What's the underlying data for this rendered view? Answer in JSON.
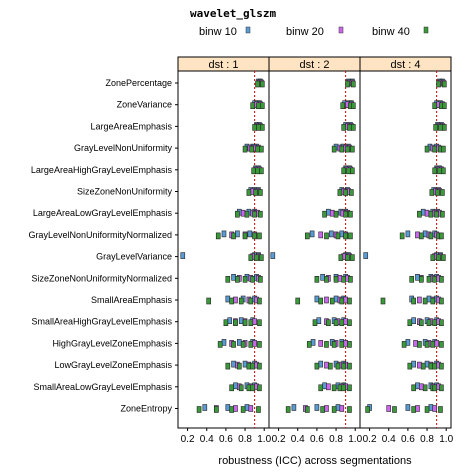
{
  "chart_data": {
    "type": "scatter",
    "title": "wavelet_glszm",
    "xlabel": "robustness (ICC) across segmentations",
    "xlim": [
      0.1,
      1.05
    ],
    "xticks": [
      "0.2",
      "0.4",
      "0.6",
      "0.8",
      "1.0"
    ],
    "reference_x": 0.9,
    "legend_position": "top",
    "panels": [
      "dst : 1",
      "dst : 2",
      "dst : 4"
    ],
    "categories": [
      "ZonePercentage",
      "ZoneVariance",
      "LargeAreaEmphasis",
      "GrayLevelNonUniformity",
      "LargeAreaHighGrayLevelEmphasis",
      "SizeZoneNonUniformity",
      "LargeAreaLowGrayLevelEmphasis",
      "GrayLevelNonUniformityNormalized",
      "GrayLevelVariance",
      "SizeZoneNonUniformityNormalized",
      "SmallAreaEmphasis",
      "SmallAreaHighGrayLevelEmphasis",
      "HighGrayLevelZoneEmphasis",
      "LowGrayLevelZoneEmphasis",
      "SmallAreaLowGrayLevelEmphasis",
      "ZoneEntropy"
    ],
    "series": [
      {
        "name": "binw 10",
        "color": "#5b9bd5",
        "values": [
          [
            [
              0.94,
              0.96
            ],
            [
              0.93,
              0.97
            ],
            [
              0.93,
              0.96
            ]
          ],
          [
            [
              0.9,
              0.93,
              0.95
            ],
            [
              0.89,
              0.94,
              0.96
            ],
            [
              0.9,
              0.94
            ]
          ],
          [
            [
              0.92,
              0.95
            ],
            [
              0.9,
              0.95
            ],
            [
              0.91,
              0.95
            ]
          ],
          [
            [
              0.82,
              0.88,
              0.92
            ],
            [
              0.8,
              0.87,
              0.93
            ],
            [
              0.83,
              0.9
            ]
          ],
          [
            [
              0.91,
              0.94
            ],
            [
              0.9,
              0.94
            ],
            [
              0.9,
              0.93
            ]
          ],
          [
            [
              0.86,
              0.9,
              0.94
            ],
            [
              0.86,
              0.92
            ],
            [
              0.87,
              0.92
            ]
          ],
          [
            [
              0.74,
              0.84,
              0.9
            ],
            [
              0.72,
              0.85,
              0.9
            ],
            [
              0.76,
              0.86,
              0.91
            ]
          ],
          [
            [
              0.58,
              0.72,
              0.85
            ],
            [
              0.55,
              0.75,
              0.86
            ],
            [
              0.6,
              0.78,
              0.88
            ]
          ],
          [
            [
              0.15,
              0.9,
              0.94
            ],
            [
              0.14,
              0.9,
              0.93
            ],
            [
              0.16,
              0.9,
              0.94
            ]
          ],
          [
            [
              0.68,
              0.82,
              0.92
            ],
            [
              0.66,
              0.8,
              0.9
            ],
            [
              0.7,
              0.84,
              0.9
            ]
          ],
          [
            [
              0.62,
              0.78,
              0.9
            ],
            [
              0.6,
              0.8,
              0.88
            ],
            [
              0.64,
              0.82,
              0.9
            ]
          ],
          [
            [
              0.64,
              0.76,
              0.88
            ],
            [
              0.62,
              0.78,
              0.88
            ],
            [
              0.66,
              0.8,
              0.9
            ]
          ],
          [
            [
              0.58,
              0.74,
              0.88
            ],
            [
              0.56,
              0.76,
              0.86
            ],
            [
              0.6,
              0.78,
              0.88
            ]
          ],
          [
            [
              0.68,
              0.8,
              0.9
            ],
            [
              0.64,
              0.8,
              0.88
            ],
            [
              0.66,
              0.8,
              0.9
            ]
          ],
          [
            [
              0.7,
              0.82,
              0.9
            ],
            [
              0.68,
              0.82,
              0.88
            ],
            [
              0.7,
              0.84,
              0.9
            ]
          ],
          [
            [
              0.38,
              0.62,
              0.82
            ],
            [
              0.36,
              0.6,
              0.82
            ],
            [
              0.2,
              0.6,
              0.84
            ]
          ]
        ]
      },
      {
        "name": "binw 20",
        "color": "#cc66ee",
        "values": [
          [
            [
              0.95,
              0.97
            ],
            [
              0.94,
              0.97
            ],
            [
              0.94,
              0.97
            ]
          ],
          [
            [
              0.92,
              0.96
            ],
            [
              0.92,
              0.96
            ],
            [
              0.92,
              0.96
            ]
          ],
          [
            [
              0.93,
              0.96
            ],
            [
              0.92,
              0.96
            ],
            [
              0.92,
              0.96
            ]
          ],
          [
            [
              0.85,
              0.9,
              0.94
            ],
            [
              0.84,
              0.9,
              0.94
            ],
            [
              0.86,
              0.92
            ]
          ],
          [
            [
              0.92,
              0.95
            ],
            [
              0.91,
              0.95
            ],
            [
              0.91,
              0.95
            ]
          ],
          [
            [
              0.88,
              0.93
            ],
            [
              0.88,
              0.93
            ],
            [
              0.89,
              0.93
            ]
          ],
          [
            [
              0.78,
              0.88,
              0.93
            ],
            [
              0.76,
              0.87,
              0.92
            ],
            [
              0.8,
              0.88,
              0.93
            ]
          ],
          [
            [
              0.66,
              0.8,
              0.9
            ],
            [
              0.64,
              0.8,
              0.9
            ],
            [
              0.7,
              0.82,
              0.9
            ]
          ],
          [
            [
              0.88,
              0.94
            ],
            [
              0.88,
              0.94
            ],
            [
              0.88,
              0.94
            ]
          ],
          [
            [
              0.74,
              0.86,
              0.94
            ],
            [
              0.72,
              0.84,
              0.92
            ],
            [
              0.74,
              0.86,
              0.92
            ]
          ],
          [
            [
              0.7,
              0.84,
              0.92
            ],
            [
              0.7,
              0.84,
              0.9
            ],
            [
              0.72,
              0.86,
              0.92
            ]
          ],
          [
            [
              0.7,
              0.8,
              0.9
            ],
            [
              0.7,
              0.82,
              0.9
            ],
            [
              0.72,
              0.84,
              0.92
            ]
          ],
          [
            [
              0.66,
              0.8,
              0.9
            ],
            [
              0.64,
              0.8,
              0.9
            ],
            [
              0.68,
              0.82,
              0.9
            ]
          ],
          [
            [
              0.72,
              0.84,
              0.92
            ],
            [
              0.7,
              0.84,
              0.9
            ],
            [
              0.72,
              0.84,
              0.92
            ]
          ],
          [
            [
              0.74,
              0.86,
              0.92
            ],
            [
              0.72,
              0.86,
              0.9
            ],
            [
              0.74,
              0.86,
              0.92
            ]
          ],
          [
            [
              0.5,
              0.7,
              0.86
            ],
            [
              0.48,
              0.7,
              0.86
            ],
            [
              0.4,
              0.7,
              0.88
            ]
          ]
        ]
      },
      {
        "name": "binw 40",
        "color": "#3a9a3a",
        "values": [
          [
            [
              0.93,
              0.98
            ],
            [
              0.92,
              0.98
            ],
            [
              0.92,
              0.98
            ]
          ],
          [
            [
              0.88,
              0.94,
              0.98
            ],
            [
              0.87,
              0.95,
              0.98
            ],
            [
              0.88,
              0.95,
              0.98
            ]
          ],
          [
            [
              0.9,
              0.94,
              0.98
            ],
            [
              0.88,
              0.94,
              0.98
            ],
            [
              0.89,
              0.94,
              0.98
            ]
          ],
          [
            [
              0.8,
              0.87,
              0.93,
              0.97
            ],
            [
              0.78,
              0.86,
              0.92,
              0.97
            ],
            [
              0.8,
              0.88,
              0.94,
              0.97
            ]
          ],
          [
            [
              0.89,
              0.93,
              0.97
            ],
            [
              0.88,
              0.93,
              0.97
            ],
            [
              0.88,
              0.93,
              0.97
            ]
          ],
          [
            [
              0.84,
              0.91,
              0.96
            ],
            [
              0.84,
              0.9,
              0.96
            ],
            [
              0.85,
              0.91,
              0.96
            ]
          ],
          [
            [
              0.72,
              0.82,
              0.9,
              0.96
            ],
            [
              0.68,
              0.8,
              0.9,
              0.95
            ],
            [
              0.72,
              0.84,
              0.9,
              0.96
            ]
          ],
          [
            [
              0.52,
              0.68,
              0.8,
              0.9,
              0.95
            ],
            [
              0.5,
              0.7,
              0.82,
              0.9,
              0.95
            ],
            [
              0.54,
              0.74,
              0.84,
              0.92,
              0.95
            ]
          ],
          [
            [
              0.86,
              0.92,
              0.97
            ],
            [
              0.85,
              0.92,
              0.97
            ],
            [
              0.86,
              0.92,
              0.97
            ]
          ],
          [
            [
              0.62,
              0.72,
              0.8,
              0.88,
              0.96
            ],
            [
              0.6,
              0.7,
              0.8,
              0.88,
              0.95
            ],
            [
              0.64,
              0.74,
              0.82,
              0.88,
              0.95
            ]
          ],
          [
            [
              0.42,
              0.66,
              0.76,
              0.86,
              0.95
            ],
            [
              0.4,
              0.64,
              0.76,
              0.86,
              0.94
            ],
            [
              0.34,
              0.66,
              0.78,
              0.86,
              0.95
            ]
          ],
          [
            [
              0.6,
              0.7,
              0.8,
              0.86,
              0.95
            ],
            [
              0.58,
              0.72,
              0.8,
              0.86,
              0.94
            ],
            [
              0.62,
              0.74,
              0.82,
              0.88,
              0.95
            ]
          ],
          [
            [
              0.54,
              0.68,
              0.78,
              0.86,
              0.95
            ],
            [
              0.52,
              0.7,
              0.78,
              0.86,
              0.94
            ],
            [
              0.56,
              0.72,
              0.8,
              0.86,
              0.95
            ]
          ],
          [
            [
              0.62,
              0.74,
              0.84,
              0.88,
              0.95
            ],
            [
              0.6,
              0.74,
              0.82,
              0.88,
              0.94
            ],
            [
              0.62,
              0.76,
              0.84,
              0.88,
              0.95
            ]
          ],
          [
            [
              0.66,
              0.76,
              0.84,
              0.88,
              0.95
            ],
            [
              0.64,
              0.78,
              0.84,
              0.88,
              0.94
            ],
            [
              0.66,
              0.78,
              0.86,
              0.88,
              0.95
            ]
          ],
          [
            [
              0.32,
              0.5,
              0.66,
              0.78,
              0.94
            ],
            [
              0.3,
              0.5,
              0.66,
              0.78,
              0.94
            ],
            [
              0.18,
              0.46,
              0.66,
              0.8,
              0.94
            ]
          ]
        ]
      }
    ]
  }
}
